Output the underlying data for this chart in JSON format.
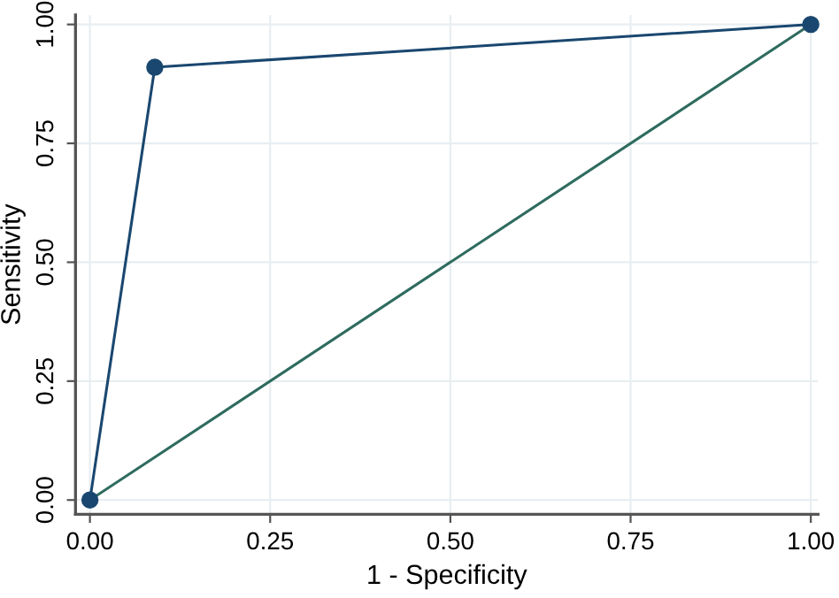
{
  "chart_data": {
    "type": "line",
    "xlabel": "1 - Specificity",
    "ylabel": "Sensitivity",
    "xlim": [
      -0.02,
      1.01
    ],
    "ylim": [
      -0.03,
      1.02
    ],
    "xticks": [
      {
        "value": 0,
        "label": "0.00"
      },
      {
        "value": 0.25,
        "label": "0.25"
      },
      {
        "value": 0.5,
        "label": "0.50"
      },
      {
        "value": 0.75,
        "label": "0.75"
      },
      {
        "value": 1,
        "label": "1.00"
      }
    ],
    "yticks": [
      {
        "value": 0,
        "label": "0.00"
      },
      {
        "value": 0.25,
        "label": "0.25"
      },
      {
        "value": 0.5,
        "label": "0.50"
      },
      {
        "value": 0.75,
        "label": "0.75"
      },
      {
        "value": 1,
        "label": "1.00"
      }
    ],
    "grid": true,
    "series": [
      {
        "x": [
          0,
          0.09,
          1
        ],
        "values": [
          0,
          0.91,
          1
        ],
        "color": "#1a476f",
        "marker": "circle"
      },
      {
        "x": [
          0,
          1
        ],
        "values": [
          0,
          1
        ],
        "color": "#2e6b5e",
        "marker": "none"
      }
    ]
  }
}
